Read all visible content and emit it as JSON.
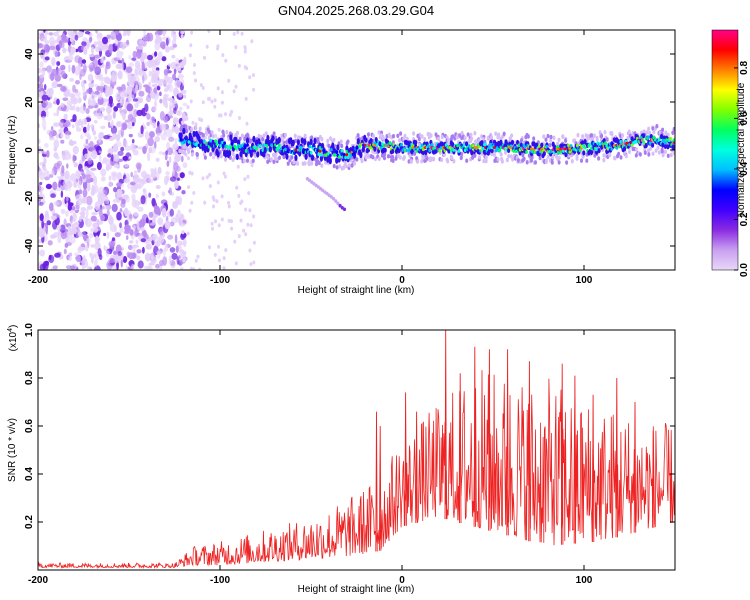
{
  "title": "GN04.2025.268.03.29.G04",
  "chart_data": [
    {
      "type": "heatmap",
      "title": "GN04.2025.268.03.29.G04",
      "xlabel": "Height of straight line (km)",
      "ylabel": "Frequency (Hz)",
      "xlim": [
        -200,
        150
      ],
      "ylim": [
        -50,
        50
      ],
      "xticks": [
        -200,
        -100,
        0,
        100
      ],
      "yticks": [
        -40,
        -20,
        0,
        20,
        40
      ],
      "noise_region_x": [
        -200,
        -121
      ],
      "signal_track": [
        {
          "x": -121,
          "freq": 4
        },
        {
          "x": -110,
          "freq": 3
        },
        {
          "x": -100,
          "freq": 2
        },
        {
          "x": -90,
          "freq": 1
        },
        {
          "x": -80,
          "freq": 1
        },
        {
          "x": -70,
          "freq": 1
        },
        {
          "x": -60,
          "freq": 0
        },
        {
          "x": -50,
          "freq": 0
        },
        {
          "x": -40,
          "freq": -1
        },
        {
          "x": -30,
          "freq": -2
        },
        {
          "x": -20,
          "freq": 2
        },
        {
          "x": -10,
          "freq": 2
        },
        {
          "x": 0,
          "freq": 1
        },
        {
          "x": 20,
          "freq": 1
        },
        {
          "x": 40,
          "freq": 1
        },
        {
          "x": 60,
          "freq": 1
        },
        {
          "x": 80,
          "freq": 0
        },
        {
          "x": 100,
          "freq": 1
        },
        {
          "x": 120,
          "freq": 2
        },
        {
          "x": 130,
          "freq": 4
        },
        {
          "x": 140,
          "freq": 4
        },
        {
          "x": 150,
          "freq": 3
        }
      ],
      "secondary_track": [
        {
          "x": -52,
          "freq": -12
        },
        {
          "x": -45,
          "freq": -16
        },
        {
          "x": -38,
          "freq": -20
        },
        {
          "x": -33,
          "freq": -24
        },
        {
          "x": -31,
          "freq": -25
        }
      ],
      "colorbar": {
        "label": "Normalized spectral amplitude",
        "range": [
          0,
          0.95
        ],
        "ticks": [
          "0.0",
          "0.2",
          "0.4",
          "0.6",
          "0.8"
        ],
        "tick_values": [
          0,
          0.2,
          0.4,
          0.6,
          0.8
        ],
        "colors": [
          "#e8d8f8",
          "#c9a0f0",
          "#8a2be2",
          "#4000ff",
          "#0000ff",
          "#00bfff",
          "#00ffe0",
          "#00ff60",
          "#80ff00",
          "#ffff00",
          "#ff8000",
          "#ff0000",
          "#ff0088"
        ]
      }
    },
    {
      "type": "line",
      "xlabel": "Height of straight line (km)",
      "ylabel": "SNR (10 * v/v)",
      "multiplier": "(x10",
      "multiplier_exp": "4",
      "multiplier_close": ")",
      "xlim": [
        -200,
        150
      ],
      "ylim": [
        0,
        1.0
      ],
      "xticks": [
        -200,
        -100,
        0,
        100
      ],
      "yticks": [
        "0.2",
        "0.4",
        "0.6",
        "0.8",
        "1.0"
      ],
      "ytick_values": [
        0.2,
        0.4,
        0.6,
        0.8,
        1.0
      ],
      "color": "#ee2222",
      "envelope": [
        {
          "x": -200,
          "base": 0.01,
          "peak": 0.03
        },
        {
          "x": -125,
          "base": 0.01,
          "peak": 0.03
        },
        {
          "x": -115,
          "base": 0.02,
          "peak": 0.1
        },
        {
          "x": -100,
          "base": 0.02,
          "peak": 0.12
        },
        {
          "x": -80,
          "base": 0.03,
          "peak": 0.16
        },
        {
          "x": -60,
          "base": 0.04,
          "peak": 0.2
        },
        {
          "x": -40,
          "base": 0.05,
          "peak": 0.26
        },
        {
          "x": -25,
          "base": 0.06,
          "peak": 0.32
        },
        {
          "x": -12,
          "base": 0.08,
          "peak": 0.4
        },
        {
          "x": 0,
          "base": 0.18,
          "peak": 0.55
        },
        {
          "x": 20,
          "base": 0.22,
          "peak": 0.7
        },
        {
          "x": 40,
          "base": 0.18,
          "peak": 0.85
        },
        {
          "x": 80,
          "base": 0.1,
          "peak": 0.8
        },
        {
          "x": 110,
          "base": 0.12,
          "peak": 0.7
        },
        {
          "x": 150,
          "base": 0.2,
          "peak": 0.6
        }
      ],
      "spikes": [
        {
          "x": -14,
          "y": 0.66
        },
        {
          "x": -12,
          "y": 0.6
        },
        {
          "x": 2,
          "y": 0.74
        },
        {
          "x": 8,
          "y": 0.66
        },
        {
          "x": 24,
          "y": 1.0
        },
        {
          "x": 32,
          "y": 0.82
        },
        {
          "x": 40,
          "y": 0.93
        },
        {
          "x": 48,
          "y": 0.92
        },
        {
          "x": 58,
          "y": 0.92
        },
        {
          "x": 70,
          "y": 0.87
        },
        {
          "x": 88,
          "y": 0.86
        },
        {
          "x": 95,
          "y": 0.81
        },
        {
          "x": 105,
          "y": 0.73
        },
        {
          "x": 118,
          "y": 0.8
        },
        {
          "x": 128,
          "y": 0.7
        },
        {
          "x": 138,
          "y": 0.58
        },
        {
          "x": 148,
          "y": 0.45
        }
      ]
    }
  ]
}
